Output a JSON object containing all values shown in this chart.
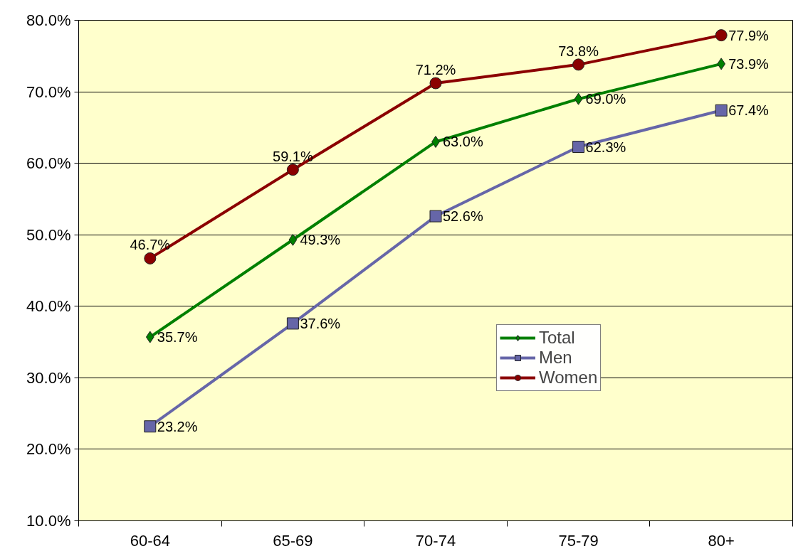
{
  "chart_data": {
    "type": "line",
    "categories": [
      "60-64",
      "65-69",
      "70-74",
      "75-79",
      "80+"
    ],
    "series": [
      {
        "name": "Total",
        "color": "#008000",
        "marker": "diamond",
        "values": [
          35.7,
          49.3,
          63.0,
          69.0,
          73.9
        ],
        "value_labels": [
          "35.7%",
          "49.3%",
          "63.0%",
          "69.0%",
          "73.9%"
        ]
      },
      {
        "name": "Men",
        "color": "#6666a8",
        "marker": "square",
        "values": [
          23.2,
          37.6,
          52.6,
          62.3,
          67.4
        ],
        "value_labels": [
          "23.2%",
          "37.6%",
          "52.6%",
          "62.3%",
          "67.4%"
        ]
      },
      {
        "name": "Women",
        "color": "#8b0000",
        "marker": "circle",
        "values": [
          46.7,
          59.1,
          71.2,
          73.8,
          77.9
        ],
        "value_labels": [
          "46.7%",
          "59.1%",
          "71.2%",
          "73.8%",
          "77.9%"
        ]
      }
    ],
    "ylim": [
      10,
      80
    ],
    "yticks": [
      {
        "value": 10,
        "label": "10.0%"
      },
      {
        "value": 20,
        "label": "20.0%"
      },
      {
        "value": 30,
        "label": "30.0%"
      },
      {
        "value": 40,
        "label": "40.0%"
      },
      {
        "value": 50,
        "label": "50.0%"
      },
      {
        "value": 60,
        "label": "60.0%"
      },
      {
        "value": 70,
        "label": "70.0%"
      },
      {
        "value": 80,
        "label": "80.0%"
      }
    ],
    "grid": "y",
    "legend": "center",
    "line_style": "solid"
  }
}
